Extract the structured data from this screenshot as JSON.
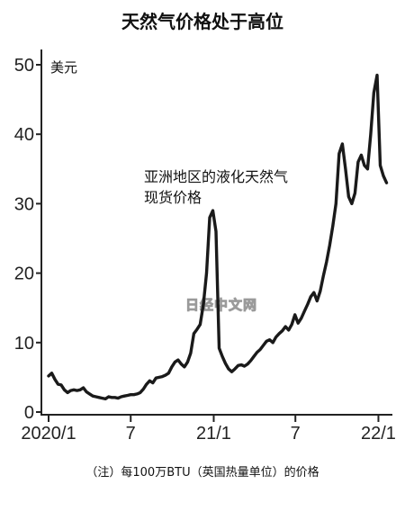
{
  "chart_data": {
    "type": "line",
    "title": "天然气价格处于高位",
    "ylabel": "美元",
    "ylim": [
      0,
      50
    ],
    "yticks": [
      0,
      10,
      20,
      30,
      40,
      50
    ],
    "xlim": [
      "2020/1",
      "2022/2"
    ],
    "xticks": [
      {
        "date": "2020/1",
        "label": "2020/1"
      },
      {
        "date": "2020/7",
        "label": "7"
      },
      {
        "date": "2021/1",
        "label": "21/1"
      },
      {
        "date": "2021/7",
        "label": "7"
      },
      {
        "date": "2022/1",
        "label": "22/1"
      }
    ],
    "grid": false,
    "color": "#1a1a1a",
    "annotation": [
      "亚洲地区的液化天然气",
      "现货价格"
    ],
    "note": "（注）每100万BTU（英国热量单位）的价格",
    "watermark": "日经中文网",
    "series": [
      {
        "x": [
          "2020-01-01",
          "2020-01-08",
          "2020-01-15",
          "2020-01-22",
          "2020-01-29",
          "2020-02-05",
          "2020-02-12",
          "2020-02-19",
          "2020-02-26",
          "2020-03-04",
          "2020-03-11",
          "2020-03-18",
          "2020-03-25",
          "2020-04-01",
          "2020-04-08",
          "2020-04-15",
          "2020-04-22",
          "2020-04-29",
          "2020-05-06",
          "2020-05-13",
          "2020-05-20",
          "2020-05-27",
          "2020-06-03",
          "2020-06-10",
          "2020-06-17",
          "2020-06-24",
          "2020-07-01",
          "2020-07-08",
          "2020-07-15",
          "2020-07-22",
          "2020-07-29",
          "2020-08-05",
          "2020-08-12",
          "2020-08-19",
          "2020-08-26",
          "2020-09-02",
          "2020-09-09",
          "2020-09-16",
          "2020-09-23",
          "2020-09-30",
          "2020-10-07",
          "2020-10-14",
          "2020-10-21",
          "2020-10-28",
          "2020-11-04",
          "2020-11-11",
          "2020-11-18",
          "2020-11-25",
          "2020-12-02",
          "2020-12-09",
          "2020-12-16",
          "2020-12-23",
          "2020-12-30",
          "2021-01-06",
          "2021-01-13",
          "2021-01-20",
          "2021-01-27",
          "2021-02-03",
          "2021-02-10",
          "2021-02-17",
          "2021-02-24",
          "2021-03-03",
          "2021-03-10",
          "2021-03-17",
          "2021-03-24",
          "2021-03-31",
          "2021-04-07",
          "2021-04-14",
          "2021-04-21",
          "2021-04-28",
          "2021-05-05",
          "2021-05-12",
          "2021-05-19",
          "2021-05-26",
          "2021-06-02",
          "2021-06-09",
          "2021-06-16",
          "2021-06-23",
          "2021-06-30",
          "2021-07-07",
          "2021-07-14",
          "2021-07-21",
          "2021-07-28",
          "2021-08-04",
          "2021-08-11",
          "2021-08-18",
          "2021-08-25",
          "2021-09-01",
          "2021-09-08",
          "2021-09-15",
          "2021-09-22",
          "2021-09-29",
          "2021-10-06",
          "2021-10-13",
          "2021-10-20",
          "2021-10-27",
          "2021-11-03",
          "2021-11-10",
          "2021-11-17",
          "2021-11-24",
          "2021-12-01",
          "2021-12-08",
          "2021-12-15",
          "2021-12-22",
          "2021-12-29",
          "2022-01-05",
          "2022-01-12",
          "2022-01-19"
        ],
        "y": [
          5.2,
          5.6,
          4.7,
          4.0,
          3.9,
          3.2,
          2.8,
          3.1,
          3.2,
          3.1,
          3.2,
          3.5,
          2.9,
          2.6,
          2.3,
          2.2,
          2.1,
          2.0,
          1.9,
          2.2,
          2.1,
          2.1,
          2.0,
          2.2,
          2.3,
          2.4,
          2.5,
          2.5,
          2.6,
          2.8,
          3.3,
          4.0,
          4.5,
          4.2,
          4.9,
          5.0,
          5.1,
          5.3,
          5.6,
          6.5,
          7.2,
          7.5,
          6.9,
          6.5,
          7.2,
          8.5,
          11.3,
          11.9,
          12.6,
          15.5,
          20.0,
          28.0,
          29.0,
          26.0,
          9.2,
          8.0,
          7.0,
          6.2,
          5.8,
          6.2,
          6.7,
          6.8,
          6.6,
          6.9,
          7.4,
          8.0,
          8.6,
          9.0,
          9.6,
          10.2,
          10.4,
          10.0,
          10.8,
          11.3,
          11.7,
          12.3,
          11.8,
          12.6,
          14.0,
          12.8,
          13.5,
          14.5,
          15.5,
          16.6,
          17.2,
          16.0,
          17.4,
          19.6,
          21.6,
          24.0,
          26.8,
          30.0,
          37.2,
          38.6,
          35.0,
          31.0,
          30.0,
          31.5,
          36.0,
          37.0,
          35.5,
          35.0,
          40.0,
          46.0,
          48.5,
          35.5,
          34.0,
          33.0
        ]
      }
    ]
  }
}
